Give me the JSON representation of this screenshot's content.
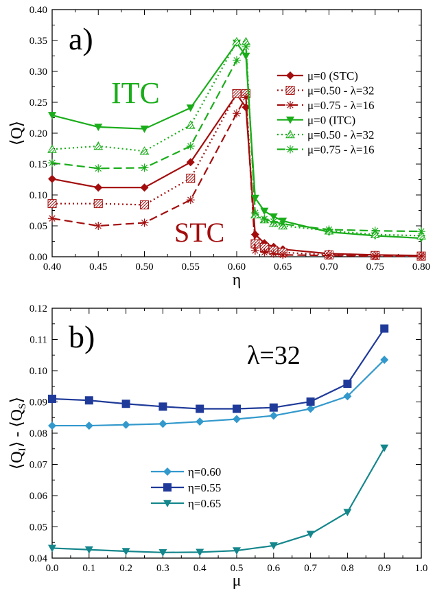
{
  "chart_data": [
    {
      "type": "line",
      "panel_label": "a)",
      "xlabel": "η",
      "ylabel": "⟨Q⟩",
      "xlim": [
        0.4,
        0.8
      ],
      "ylim": [
        0.0,
        0.4
      ],
      "xticks": [
        "0.40",
        "0.45",
        "0.50",
        "0.55",
        "0.60",
        "0.65",
        "0.70",
        "0.75",
        "0.80"
      ],
      "yticks": [
        "0.00",
        "0.05",
        "0.10",
        "0.15",
        "0.20",
        "0.25",
        "0.30",
        "0.35",
        "0.40"
      ],
      "annotations": [
        {
          "text": "ITC",
          "color": "#1aad1a"
        },
        {
          "text": "STC",
          "color": "#a30d0d"
        }
      ],
      "legend_position": "right",
      "series": [
        {
          "name": "μ=0 (STC)",
          "color": "#a30d0d",
          "dash": "solid",
          "marker": "diamond",
          "x": [
            0.4,
            0.45,
            0.5,
            0.55,
            0.6,
            0.61,
            0.62,
            0.63,
            0.64,
            0.65,
            0.7,
            0.75,
            0.8
          ],
          "y": [
            0.126,
            0.112,
            0.112,
            0.153,
            0.263,
            0.242,
            0.036,
            0.022,
            0.016,
            0.012,
            0.005,
            0.003,
            0.002
          ]
        },
        {
          "name": "μ=0.50 - λ=32",
          "color": "#a30d0d",
          "dash": "dotted",
          "marker": "hatched-square",
          "x": [
            0.4,
            0.45,
            0.5,
            0.55,
            0.6,
            0.61,
            0.62,
            0.63,
            0.64,
            0.65,
            0.7,
            0.75,
            0.8
          ],
          "y": [
            0.086,
            0.086,
            0.084,
            0.127,
            0.264,
            0.264,
            0.021,
            0.015,
            0.01,
            0.007,
            0.003,
            0.002,
            0.001
          ]
        },
        {
          "name": "μ=0.75 - λ=16",
          "color": "#a30d0d",
          "dash": "dashed",
          "marker": "star",
          "x": [
            0.4,
            0.45,
            0.5,
            0.55,
            0.6,
            0.61,
            0.62,
            0.63,
            0.64,
            0.65,
            0.7,
            0.75,
            0.8
          ],
          "y": [
            0.062,
            0.05,
            0.055,
            0.092,
            0.232,
            0.258,
            0.01,
            0.007,
            0.005,
            0.003,
            0.002,
            0.001,
            0.001
          ]
        },
        {
          "name": "μ=0 (ITC)",
          "color": "#1aad1a",
          "dash": "solid",
          "marker": "triangle-down",
          "x": [
            0.4,
            0.45,
            0.5,
            0.55,
            0.6,
            0.61,
            0.62,
            0.63,
            0.64,
            0.65,
            0.7,
            0.75,
            0.8
          ],
          "y": [
            0.229,
            0.21,
            0.207,
            0.241,
            0.346,
            0.325,
            0.095,
            0.074,
            0.065,
            0.058,
            0.04,
            0.034,
            0.03
          ]
        },
        {
          "name": "μ=0.50 - λ=32",
          "color": "#1aad1a",
          "dash": "dotted",
          "marker": "hatched-triangle",
          "x": [
            0.4,
            0.45,
            0.5,
            0.55,
            0.6,
            0.61,
            0.62,
            0.63,
            0.64,
            0.65,
            0.7,
            0.75,
            0.8
          ],
          "y": [
            0.174,
            0.179,
            0.171,
            0.213,
            0.348,
            0.348,
            0.068,
            0.06,
            0.054,
            0.05,
            0.042,
            0.036,
            0.034
          ]
        },
        {
          "name": "μ=0.75 - λ=16",
          "color": "#1aad1a",
          "dash": "dashed",
          "marker": "star",
          "x": [
            0.4,
            0.45,
            0.5,
            0.55,
            0.6,
            0.61,
            0.62,
            0.63,
            0.64,
            0.65,
            0.7,
            0.75,
            0.8
          ],
          "y": [
            0.152,
            0.143,
            0.144,
            0.179,
            0.318,
            0.34,
            0.071,
            0.061,
            0.057,
            0.053,
            0.044,
            0.042,
            0.041
          ]
        }
      ]
    },
    {
      "type": "line",
      "panel_label": "b)",
      "xlabel": "μ",
      "ylabel": "⟨Q",
      "ylabel_sub1": "I",
      "ylabel_mid": "⟩ - ⟨Q",
      "ylabel_sub2": "S",
      "ylabel_end": "⟩",
      "xlim": [
        0.0,
        1.0
      ],
      "ylim": [
        0.04,
        0.12
      ],
      "xticks": [
        "0.0",
        "0.1",
        "0.2",
        "0.3",
        "0.4",
        "0.5",
        "0.6",
        "0.7",
        "0.8",
        "0.9",
        "1.0"
      ],
      "yticks": [
        "0.04",
        "0.05",
        "0.06",
        "0.07",
        "0.08",
        "0.09",
        "0.10",
        "0.11",
        "0.12"
      ],
      "annotations": [
        {
          "text": "λ=32",
          "color": "#000000"
        }
      ],
      "legend_position": "lower-left",
      "series": [
        {
          "name": "η=0.60",
          "color": "#3399cc",
          "marker": "diamond",
          "x": [
            0.0,
            0.1,
            0.2,
            0.3,
            0.4,
            0.5,
            0.6,
            0.7,
            0.8,
            0.9
          ],
          "y": [
            0.0824,
            0.0824,
            0.0827,
            0.083,
            0.0837,
            0.0845,
            0.0856,
            0.0878,
            0.0918,
            0.1035
          ]
        },
        {
          "name": "η=0.55",
          "color": "#1f3a99",
          "marker": "square",
          "x": [
            0.0,
            0.1,
            0.2,
            0.3,
            0.4,
            0.5,
            0.6,
            0.7,
            0.8,
            0.9
          ],
          "y": [
            0.091,
            0.0905,
            0.0894,
            0.0885,
            0.0878,
            0.0878,
            0.0882,
            0.0901,
            0.0958,
            0.1135
          ]
        },
        {
          "name": "η=0.65",
          "color": "#14868c",
          "marker": "triangle-down",
          "x": [
            0.0,
            0.1,
            0.2,
            0.3,
            0.4,
            0.5,
            0.6,
            0.7,
            0.8,
            0.9
          ],
          "y": [
            0.0432,
            0.0427,
            0.0422,
            0.0418,
            0.0419,
            0.0424,
            0.044,
            0.0477,
            0.0547,
            0.0753
          ]
        }
      ]
    }
  ]
}
